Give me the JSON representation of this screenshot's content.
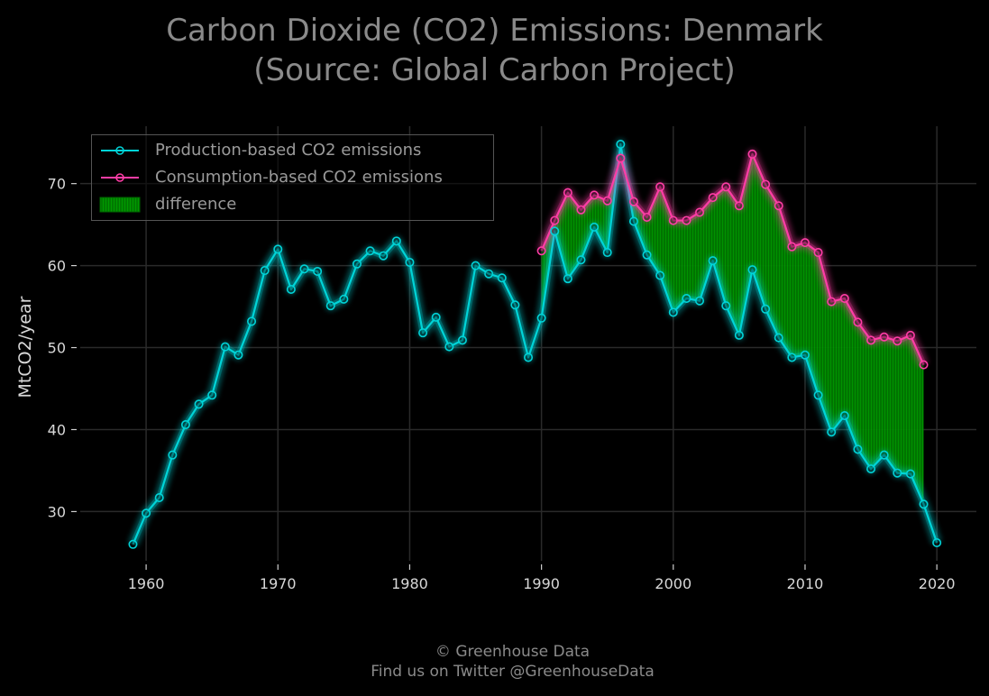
{
  "title_line1": "Carbon Dioxide (CO2) Emissions: Denmark",
  "title_line2": "(Source: Global Carbon Project)",
  "footer_line1": "© Greenhouse Data",
  "footer_line2": "Find us on Twitter @GreenhouseData",
  "colors": {
    "background": "#000000",
    "production": "#00d4d8",
    "consumption": "#ff3da6",
    "difference": "#009900",
    "grid": "#2a2a2a",
    "text": "#8a8a8a"
  },
  "chart_data": {
    "type": "line",
    "title": "Carbon Dioxide (CO2) Emissions: Denmark (Source: Global Carbon Project)",
    "xlabel": "",
    "ylabel": "MtCO2/year",
    "xlim": [
      1955,
      2023
    ],
    "ylim": [
      24,
      77
    ],
    "xticks": [
      1960,
      1970,
      1980,
      1990,
      2000,
      2010,
      2020
    ],
    "yticks": [
      30,
      40,
      50,
      60,
      70
    ],
    "grid": true,
    "legend_position": "top-left",
    "legend": [
      "Production-based CO2 emissions",
      "Consumption-based CO2 emissions",
      "difference"
    ],
    "series": [
      {
        "name": "Production-based CO2 emissions",
        "x": [
          1959,
          1960,
          1961,
          1962,
          1963,
          1964,
          1965,
          1966,
          1967,
          1968,
          1969,
          1970,
          1971,
          1972,
          1973,
          1974,
          1975,
          1976,
          1977,
          1978,
          1979,
          1980,
          1981,
          1982,
          1983,
          1984,
          1985,
          1986,
          1987,
          1988,
          1989,
          1990,
          1991,
          1992,
          1993,
          1994,
          1995,
          1996,
          1997,
          1998,
          1999,
          2000,
          2001,
          2002,
          2003,
          2004,
          2005,
          2006,
          2007,
          2008,
          2009,
          2010,
          2011,
          2012,
          2013,
          2014,
          2015,
          2016,
          2017,
          2018,
          2019,
          2020
        ],
        "values": [
          26.0,
          29.8,
          31.7,
          36.9,
          40.6,
          43.1,
          44.2,
          50.1,
          49.1,
          53.2,
          59.4,
          62.0,
          57.1,
          59.6,
          59.3,
          55.1,
          55.9,
          60.2,
          61.8,
          61.2,
          63.0,
          60.4,
          51.8,
          53.7,
          50.1,
          50.9,
          60.0,
          59.0,
          58.5,
          55.2,
          48.8,
          53.6,
          64.2,
          58.4,
          60.7,
          64.7,
          61.6,
          74.8,
          65.4,
          61.3,
          58.8,
          54.3,
          56.0,
          55.7,
          60.6,
          55.1,
          51.5,
          59.5,
          54.7,
          51.2,
          48.8,
          49.1,
          44.2,
          39.7,
          41.7,
          37.6,
          35.2,
          36.9,
          34.7,
          34.6,
          30.9,
          26.2
        ]
      },
      {
        "name": "Consumption-based CO2 emissions",
        "x": [
          1990,
          1991,
          1992,
          1993,
          1994,
          1995,
          1996,
          1997,
          1998,
          1999,
          2000,
          2001,
          2002,
          2003,
          2004,
          2005,
          2006,
          2007,
          2008,
          2009,
          2010,
          2011,
          2012,
          2013,
          2014,
          2015,
          2016,
          2017,
          2018,
          2019
        ],
        "values": [
          61.8,
          65.5,
          68.9,
          66.8,
          68.6,
          67.9,
          73.1,
          67.8,
          65.9,
          69.6,
          65.5,
          65.5,
          66.5,
          68.3,
          69.6,
          67.3,
          73.6,
          69.9,
          67.3,
          62.3,
          62.8,
          61.6,
          55.6,
          56.0,
          53.1,
          50.9,
          51.3,
          50.8,
          51.5,
          47.9
        ]
      }
    ],
    "difference": "area between consumption-based and production-based series, 1990–2019"
  }
}
